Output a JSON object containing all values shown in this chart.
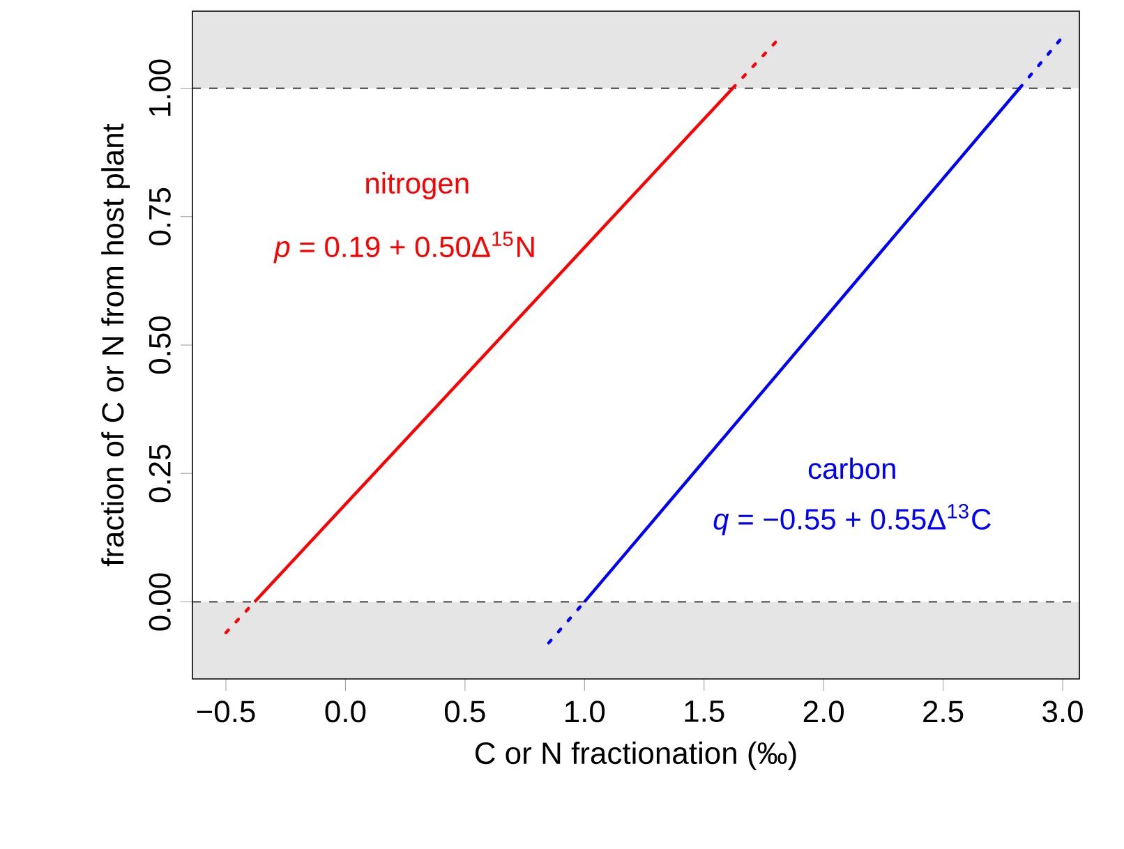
{
  "chart_data": {
    "type": "line",
    "xlabel": "C or N fractionation (‰)",
    "ylabel": "fraction of C or N from host plant",
    "xlim": [
      -0.64,
      3.07
    ],
    "ylim": [
      -0.15,
      1.15
    ],
    "xticks": [
      {
        "value": -0.5,
        "label": "−0.5"
      },
      {
        "value": 0,
        "label": "0.0"
      },
      0.5,
      {
        "value": 1,
        "label": "1.0"
      },
      1.5,
      {
        "value": 2,
        "label": "2.0"
      },
      2.5,
      {
        "value": 3,
        "label": "3.0"
      }
    ],
    "yticks": [
      {
        "value": 0,
        "label": "0.00"
      },
      0.25,
      {
        "value": 0.5,
        "label": "0.50"
      },
      0.75,
      {
        "value": 1,
        "label": "1.00"
      }
    ],
    "series": [
      {
        "color": "#ff0000",
        "line_style": "dotted",
        "x": [
          -0.5,
          -0.38
        ],
        "values": [
          -0.06,
          0
        ]
      },
      {
        "name": "nitrogen",
        "color": "#ff0000",
        "line_style": "solid",
        "x": [
          -0.38,
          1.62
        ],
        "values": [
          0,
          1
        ]
      },
      {
        "color": "#ff0000",
        "line_style": "dotted",
        "x": [
          1.62,
          1.8
        ],
        "values": [
          1,
          1.09
        ]
      },
      {
        "color": "#0000ff",
        "line_style": "dotted",
        "x": [
          0.85,
          1.0
        ],
        "values": [
          -0.08,
          0
        ]
      },
      {
        "name": "carbon",
        "color": "#0000ff",
        "line_style": "solid",
        "x": [
          1.0,
          2.82
        ],
        "values": [
          0,
          1
        ]
      },
      {
        "color": "#0000ff",
        "line_style": "dotted",
        "x": [
          2.82,
          3.0
        ],
        "values": [
          1,
          1.1
        ]
      }
    ],
    "ref_lines": [
      {
        "axis": "y",
        "value": 0,
        "line_style": "dashed"
      },
      {
        "axis": "y",
        "value": 1,
        "line_style": "dashed"
      }
    ],
    "bands": [
      {
        "axis": "y",
        "from": 1,
        "to": 1.15,
        "color": "#e5e5e5"
      },
      {
        "axis": "y",
        "from": -0.15,
        "to": 0,
        "color": "#e5e5e5"
      }
    ],
    "annotations": [
      "*p* = 0.19 + 0.50Δ$^{15}$N",
      "*q* = −0.55 + 0.55Δ$^{13}$C"
    ]
  }
}
